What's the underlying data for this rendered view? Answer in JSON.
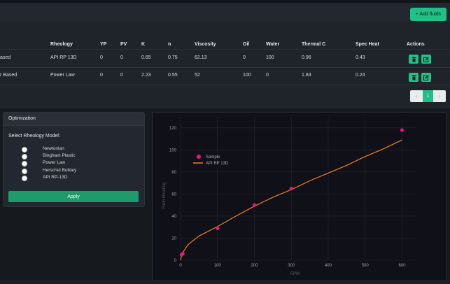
{
  "header": {
    "add_fluids_label": "+ Add fluids"
  },
  "table": {
    "columns": [
      "Rheology",
      "YP",
      "PV",
      "K",
      "n",
      "Viscosity",
      "Oil",
      "Water",
      "Thermal C",
      "Spec Heat",
      "Actions"
    ],
    "rows": [
      {
        "name": "ased",
        "rheology": "API RP 13D",
        "yp": "0",
        "pv": "0",
        "k": "0.65",
        "n": "0.75",
        "viscosity": "62.13",
        "oil": "0",
        "water": "100",
        "thermal_c": "0.96",
        "spec_heat": "0.43"
      },
      {
        "name": "r Based",
        "rheology": "Power Law",
        "yp": "0",
        "pv": "0",
        "k": "2.23",
        "n": "0.55",
        "viscosity": "52",
        "oil": "100",
        "water": "0",
        "thermal_c": "1.84",
        "spec_heat": "0.24"
      }
    ],
    "action_icons": [
      "trash-icon",
      "edit-icon"
    ]
  },
  "pagination": {
    "prev": "‹",
    "current": "1",
    "next": "›"
  },
  "optimization": {
    "title": "Optimization",
    "subtitle": "Select Rheology Model:",
    "options": [
      "Newtonian",
      "Bingham Plastic",
      "Power Law",
      "Herschel Bulkley",
      "API RP-13D"
    ],
    "apply_label": "Apply"
  },
  "colors": {
    "accent": "#20c187",
    "sample": "#e8177a",
    "fit_line": "#f07f1f"
  },
  "chart_data": {
    "type": "scatter",
    "xlabel": "RPM",
    "ylabel": "Fann Reading",
    "xlim": [
      0,
      620
    ],
    "ylim": [
      0,
      130
    ],
    "x_ticks": [
      0,
      100,
      200,
      300,
      400,
      500,
      600
    ],
    "y_ticks": [
      0,
      20,
      40,
      60,
      80,
      100,
      120
    ],
    "legend_position": "top-left",
    "series": [
      {
        "name": "Sample",
        "kind": "points",
        "x": [
          3,
          6,
          100,
          200,
          300,
          600
        ],
        "y": [
          5,
          6,
          29,
          50,
          65,
          118
        ]
      },
      {
        "name": "API RP 13D",
        "kind": "line",
        "x": [
          0,
          3,
          6,
          20,
          50,
          100,
          150,
          200,
          250,
          300,
          350,
          400,
          450,
          500,
          550,
          600
        ],
        "y": [
          0,
          4.5,
          7,
          14,
          22,
          30.5,
          40,
          49,
          57,
          64,
          72,
          79,
          86,
          94,
          101,
          109
        ]
      }
    ]
  }
}
